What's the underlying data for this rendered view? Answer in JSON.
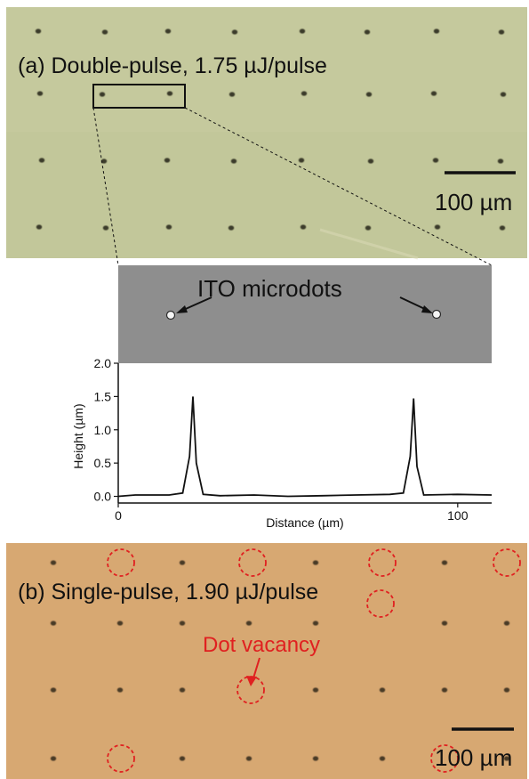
{
  "panel_a": {
    "label": "(a) Double-pulse, 1.75 µJ/pulse",
    "scale_bar": "100 µm",
    "background_color": "#c2c79a"
  },
  "sem_inset": {
    "label": "ITO microdots",
    "background_color": "#8e8e8e"
  },
  "panel_b": {
    "label": "(b) Single-pulse, 1.90 µJ/pulse",
    "vacancy_label": "Dot vacancy",
    "scale_bar": "100 µm",
    "background_color": "#d4a46f",
    "accent_color": "#e02020"
  },
  "chart_data": {
    "type": "line",
    "title": "",
    "xlabel": "Distance (µm)",
    "ylabel": "Height (µm)",
    "xlim": [
      0,
      110
    ],
    "ylim": [
      -0.1,
      2.0
    ],
    "x_ticks": [
      0,
      100
    ],
    "y_ticks": [
      0.0,
      0.5,
      1.0,
      1.5,
      2.0
    ],
    "x_tick_labels": [
      "0",
      "100"
    ],
    "y_tick_labels": [
      "0.0",
      "0.5",
      "1.0",
      "1.5",
      "2.0"
    ],
    "grid": false,
    "series": [
      {
        "x": [
          0,
          5,
          10,
          15,
          19,
          21,
          22,
          23,
          25,
          30,
          40,
          50,
          60,
          70,
          80,
          84,
          86,
          87,
          88,
          90,
          100,
          110
        ],
        "values": [
          0.0,
          0.02,
          0.02,
          0.02,
          0.05,
          0.6,
          1.5,
          0.5,
          0.03,
          0.01,
          0.02,
          0.0,
          0.01,
          0.02,
          0.03,
          0.05,
          0.6,
          1.47,
          0.45,
          0.02,
          0.03,
          0.02
        ]
      }
    ]
  }
}
